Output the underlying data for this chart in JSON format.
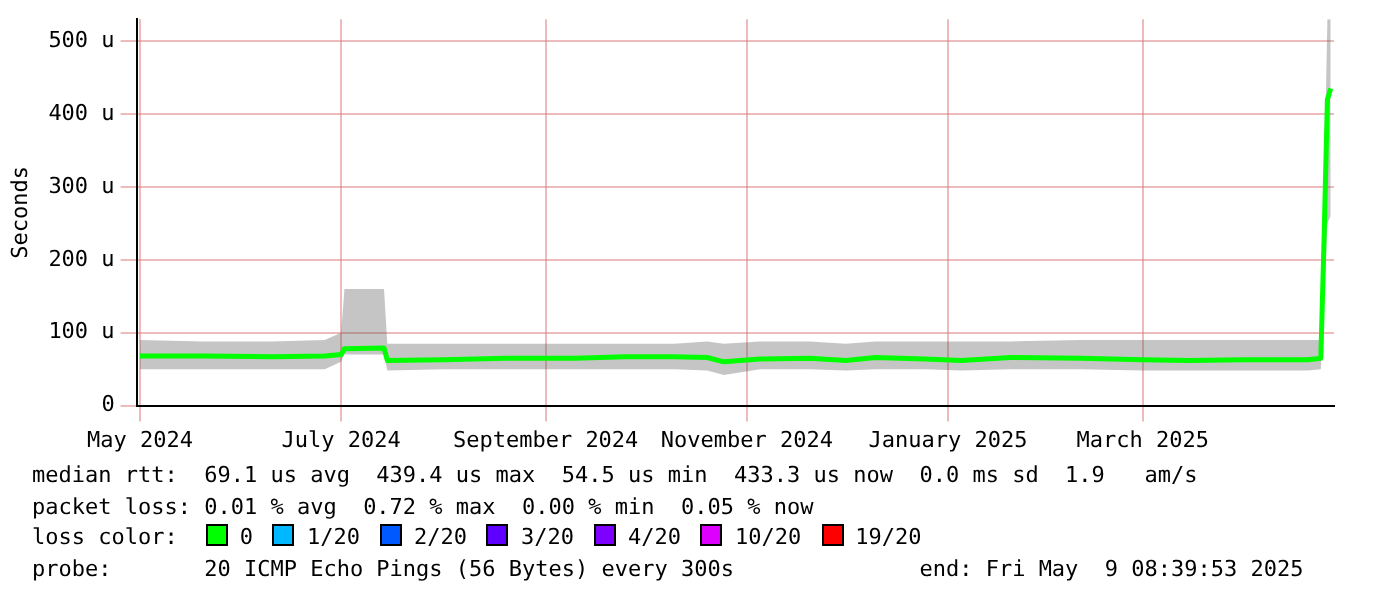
{
  "chart_data": {
    "type": "line",
    "ylabel": "Seconds",
    "x": [
      "2024-05-01",
      "2024-05-20",
      "2024-06-10",
      "2024-06-26",
      "2024-07-01",
      "2024-07-02",
      "2024-07-14",
      "2024-07-15",
      "2024-08-01",
      "2024-08-20",
      "2024-09-10",
      "2024-09-25",
      "2024-10-10",
      "2024-10-20",
      "2024-10-25",
      "2024-11-05",
      "2024-11-20",
      "2024-12-01",
      "2024-12-10",
      "2024-12-25",
      "2025-01-05",
      "2025-01-20",
      "2025-02-10",
      "2025-03-01",
      "2025-03-15",
      "2025-04-01",
      "2025-04-20",
      "2025-04-24",
      "2025-04-25",
      "2025-04-26",
      "2025-04-27"
    ],
    "series": [
      {
        "color": "#00ff00",
        "values": [
          68,
          68,
          67,
          68,
          70,
          78,
          79,
          62,
          63,
          65,
          65,
          67,
          67,
          66,
          60,
          64,
          65,
          62,
          66,
          64,
          62,
          66,
          65,
          63,
          62,
          63,
          63,
          65,
          230,
          420,
          435
        ],
        "lower": [
          50,
          50,
          50,
          50,
          60,
          70,
          70,
          48,
          50,
          50,
          50,
          50,
          50,
          48,
          42,
          50,
          50,
          48,
          50,
          50,
          48,
          50,
          50,
          48,
          48,
          48,
          48,
          50,
          150,
          250,
          260
        ],
        "upper": [
          90,
          88,
          88,
          90,
          100,
          160,
          160,
          85,
          85,
          85,
          85,
          85,
          85,
          88,
          85,
          88,
          88,
          85,
          88,
          88,
          88,
          88,
          90,
          90,
          90,
          90,
          90,
          90,
          300,
          530,
          530
        ]
      }
    ],
    "xlim": [
      "2024-04-30",
      "2025-04-28"
    ],
    "xticks": [
      {
        "value": "2024-05-01",
        "label": "May 2024"
      },
      {
        "value": "2024-07-01",
        "label": "July 2024"
      },
      {
        "value": "2024-09-01",
        "label": "September 2024"
      },
      {
        "value": "2024-11-01",
        "label": "November 2024"
      },
      {
        "value": "2025-01-01",
        "label": "January 2025"
      },
      {
        "value": "2025-03-01",
        "label": "March 2025"
      }
    ],
    "ylim": [
      0,
      530
    ],
    "yticks": [
      0,
      {
        "value": 100,
        "label": "100 u"
      },
      {
        "value": 200,
        "label": "200 u"
      },
      {
        "value": 300,
        "label": "300 u"
      },
      {
        "value": 400,
        "label": "400 u"
      },
      {
        "value": 500,
        "label": "500 u"
      }
    ],
    "grid": true,
    "legend": false,
    "marker": "none",
    "line_style": "solid",
    "annotations": [
      "median rtt:  69.1 us avg  439.4 us max  54.5 us min  433.3 us now  0.0 ms sd  1.9   am/s",
      "packet loss: 0.01 % avg  0.72 % max  0.00 % min  0.05 % now",
      "loss color:",
      "0",
      "1/20",
      "2/20",
      "3/20",
      "4/20",
      "10/20",
      "19/20",
      "probe:       20 ICMP Echo Pings (56 Bytes) every 300s              end: Fri May  9 08:39:53 2025"
    ]
  }
}
